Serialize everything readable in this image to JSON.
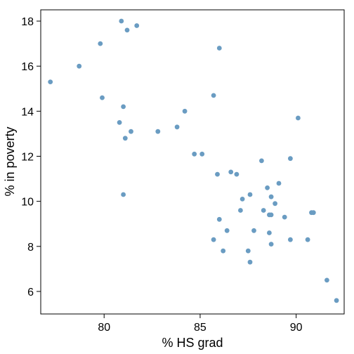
{
  "chart_data": {
    "type": "scatter",
    "title": "",
    "xlabel": "% HS grad",
    "ylabel": "% in poverty",
    "xlim": [
      76.7,
      92.5
    ],
    "ylim": [
      5.0,
      18.5
    ],
    "xticks": [
      80,
      85,
      90
    ],
    "yticks": [
      6,
      8,
      10,
      12,
      14,
      16,
      18
    ],
    "grid": false,
    "point_color": "#6a9cc2",
    "series": [
      {
        "points": [
          [
            77.2,
            15.3
          ],
          [
            78.7,
            16.0
          ],
          [
            79.8,
            17.0
          ],
          [
            79.9,
            14.6
          ],
          [
            80.9,
            18.0
          ],
          [
            81.2,
            17.6
          ],
          [
            81.7,
            17.8
          ],
          [
            80.8,
            13.5
          ],
          [
            81.0,
            14.2
          ],
          [
            81.4,
            13.1
          ],
          [
            81.1,
            12.8
          ],
          [
            81.0,
            10.3
          ],
          [
            82.8,
            13.1
          ],
          [
            83.8,
            13.3
          ],
          [
            84.2,
            14.0
          ],
          [
            84.7,
            12.1
          ],
          [
            85.1,
            12.1
          ],
          [
            85.7,
            14.7
          ],
          [
            86.0,
            16.8
          ],
          [
            85.9,
            11.2
          ],
          [
            86.6,
            11.3
          ],
          [
            86.9,
            11.2
          ],
          [
            86.0,
            9.2
          ],
          [
            86.4,
            8.7
          ],
          [
            85.7,
            8.3
          ],
          [
            86.2,
            7.8
          ],
          [
            87.2,
            10.1
          ],
          [
            87.6,
            10.3
          ],
          [
            87.1,
            9.6
          ],
          [
            87.8,
            8.7
          ],
          [
            87.5,
            7.8
          ],
          [
            87.6,
            7.3
          ],
          [
            88.2,
            11.8
          ],
          [
            88.5,
            10.6
          ],
          [
            88.7,
            10.2
          ],
          [
            88.3,
            9.6
          ],
          [
            88.6,
            9.4
          ],
          [
            88.7,
            9.4
          ],
          [
            88.9,
            9.9
          ],
          [
            89.1,
            10.8
          ],
          [
            88.6,
            8.6
          ],
          [
            88.7,
            8.1
          ],
          [
            89.4,
            9.3
          ],
          [
            89.7,
            11.9
          ],
          [
            90.1,
            13.7
          ],
          [
            89.7,
            8.3
          ],
          [
            90.6,
            8.3
          ],
          [
            90.8,
            9.5
          ],
          [
            90.9,
            9.5
          ],
          [
            91.6,
            6.5
          ],
          [
            92.1,
            5.6
          ]
        ]
      }
    ]
  }
}
